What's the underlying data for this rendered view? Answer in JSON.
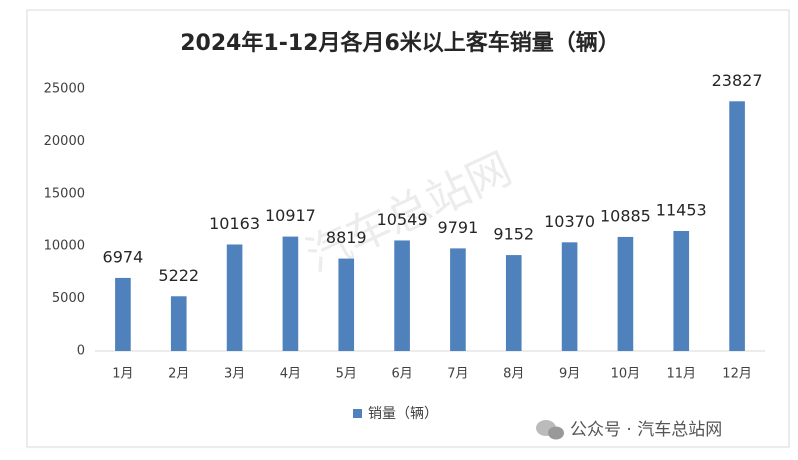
{
  "chart_data": {
    "type": "bar",
    "title": "2024年1-12月各月6米以上客车销量（辆）",
    "categories": [
      "1月",
      "2月",
      "3月",
      "4月",
      "5月",
      "6月",
      "7月",
      "8月",
      "9月",
      "10月",
      "11月",
      "12月"
    ],
    "series": [
      {
        "name": "销量（辆）",
        "color": "#4f81bd",
        "values": [
          6974,
          5222,
          10163,
          10917,
          8819,
          10549,
          9791,
          9152,
          10370,
          10885,
          11453,
          23827
        ]
      }
    ],
    "ylim": [
      0,
      25000
    ],
    "yticks": [
      0,
      5000,
      10000,
      15000,
      20000,
      25000
    ],
    "grid": false,
    "legend": "bottom",
    "show_value_labels": true,
    "watermark": "汽车总站网",
    "source": "公众号 · 汽车总站网"
  }
}
